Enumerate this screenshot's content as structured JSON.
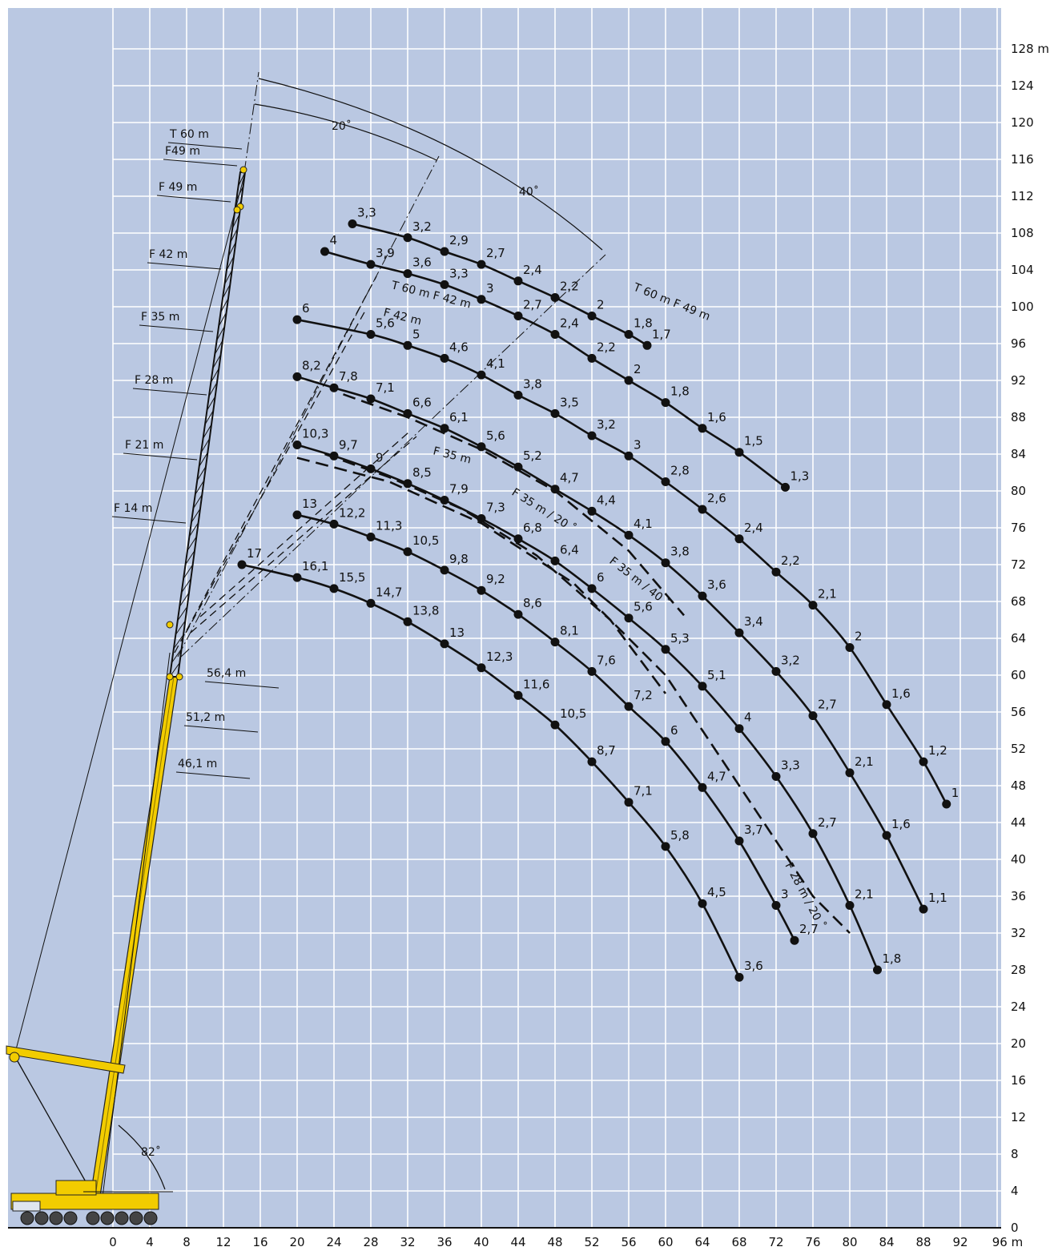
{
  "chart_data": {
    "type": "line",
    "title": "",
    "xlabel": "",
    "ylabel": "",
    "xlim": [
      0,
      96
    ],
    "ylim": [
      0,
      128
    ],
    "x_ticks": [
      "0",
      "4",
      "8",
      "12",
      "16",
      "20",
      "24",
      "28",
      "32",
      "36",
      "40",
      "44",
      "48",
      "52",
      "56",
      "60",
      "64",
      "68",
      "72",
      "76",
      "80",
      "84",
      "88",
      "92",
      "96 m"
    ],
    "y_ticks": [
      "0",
      "4",
      "8",
      "12",
      "16",
      "20",
      "24",
      "28",
      "32",
      "36",
      "40",
      "44",
      "48",
      "52",
      "56",
      "60",
      "64",
      "68",
      "72",
      "76",
      "80",
      "84",
      "88",
      "92",
      "96",
      "100",
      "104",
      "108",
      "112",
      "116",
      "120",
      "124",
      "128 m"
    ],
    "grid": true,
    "background": "#bac8e2",
    "boom_color": "#f2cc00",
    "series": [
      {
        "points": [
          {
            "x": 26,
            "y": 109,
            "label": "3,3"
          },
          {
            "x": 32,
            "y": 107.5,
            "label": "3,2"
          },
          {
            "x": 36,
            "y": 106,
            "label": "2,9"
          },
          {
            "x": 40,
            "y": 104.6,
            "label": "2,7"
          },
          {
            "x": 44,
            "y": 102.8,
            "label": "2,4"
          },
          {
            "x": 48,
            "y": 101,
            "label": "2,2"
          },
          {
            "x": 52,
            "y": 99,
            "label": "2"
          },
          {
            "x": 56,
            "y": 97,
            "label": "1,8"
          },
          {
            "x": 58,
            "y": 95.8,
            "label": "1,7"
          }
        ]
      },
      {
        "points": [
          {
            "x": 23,
            "y": 106,
            "label": "4"
          },
          {
            "x": 28,
            "y": 104.6,
            "label": "3,9"
          },
          {
            "x": 32,
            "y": 103.6,
            "label": "3,6"
          },
          {
            "x": 36,
            "y": 102.4,
            "label": "3,3"
          },
          {
            "x": 40,
            "y": 100.8,
            "label": "3"
          },
          {
            "x": 44,
            "y": 99,
            "label": "2,7"
          },
          {
            "x": 48,
            "y": 97,
            "label": "2,4"
          },
          {
            "x": 52,
            "y": 94.4,
            "label": "2,2"
          },
          {
            "x": 56,
            "y": 92,
            "label": "2"
          },
          {
            "x": 60,
            "y": 89.6,
            "label": "1,8"
          },
          {
            "x": 64,
            "y": 86.8,
            "label": "1,6"
          },
          {
            "x": 68,
            "y": 84.2,
            "label": "1,5"
          },
          {
            "x": 73,
            "y": 80.4,
            "label": "1,3"
          }
        ]
      },
      {
        "points": [
          {
            "x": 20,
            "y": 98.6,
            "label": "6"
          },
          {
            "x": 28,
            "y": 97,
            "label": "5,6"
          },
          {
            "x": 32,
            "y": 95.8,
            "label": "5"
          },
          {
            "x": 36,
            "y": 94.4,
            "label": "4,6"
          },
          {
            "x": 40,
            "y": 92.6,
            "label": "4,1"
          },
          {
            "x": 44,
            "y": 90.4,
            "label": "3,8"
          },
          {
            "x": 48,
            "y": 88.4,
            "label": "3,5"
          },
          {
            "x": 52,
            "y": 86,
            "label": "3,2"
          },
          {
            "x": 56,
            "y": 83.8,
            "label": "3"
          },
          {
            "x": 60,
            "y": 81,
            "label": "2,8"
          },
          {
            "x": 64,
            "y": 78,
            "label": "2,6"
          },
          {
            "x": 68,
            "y": 74.8,
            "label": "2,4"
          },
          {
            "x": 72,
            "y": 71.2,
            "label": "2,2"
          },
          {
            "x": 76,
            "y": 67.6,
            "label": "2,1"
          },
          {
            "x": 80,
            "y": 63,
            "label": "2"
          },
          {
            "x": 84,
            "y": 56.8,
            "label": "1,6"
          },
          {
            "x": 88,
            "y": 50.6,
            "label": "1,2"
          },
          {
            "x": 90.5,
            "y": 46,
            "label": "1"
          }
        ]
      },
      {
        "points": [
          {
            "x": 20,
            "y": 92.4,
            "label": "8,2"
          },
          {
            "x": 24,
            "y": 91.2,
            "label": "7,8"
          },
          {
            "x": 28,
            "y": 90,
            "label": "7,1"
          },
          {
            "x": 32,
            "y": 88.4,
            "label": "6,6"
          },
          {
            "x": 36,
            "y": 86.8,
            "label": "6,1"
          },
          {
            "x": 40,
            "y": 84.8,
            "label": "5,6"
          },
          {
            "x": 44,
            "y": 82.6,
            "label": "5,2"
          },
          {
            "x": 48,
            "y": 80.2,
            "label": "4,7"
          },
          {
            "x": 52,
            "y": 77.8,
            "label": "4,4"
          },
          {
            "x": 56,
            "y": 75.2,
            "label": "4,1"
          },
          {
            "x": 60,
            "y": 72.2,
            "label": "3,8"
          },
          {
            "x": 64,
            "y": 68.6,
            "label": "3,6"
          },
          {
            "x": 68,
            "y": 64.6,
            "label": "3,4"
          },
          {
            "x": 72,
            "y": 60.4,
            "label": "3,2"
          },
          {
            "x": 76,
            "y": 55.6,
            "label": "2,7"
          },
          {
            "x": 80,
            "y": 49.4,
            "label": "2,1"
          },
          {
            "x": 84,
            "y": 42.6,
            "label": "1,6"
          },
          {
            "x": 88,
            "y": 34.6,
            "label": "1,1"
          }
        ]
      },
      {
        "points": [
          {
            "x": 20,
            "y": 85,
            "label": "10,3"
          },
          {
            "x": 24,
            "y": 83.8,
            "label": "9,7"
          },
          {
            "x": 28,
            "y": 82.4,
            "label": "9"
          },
          {
            "x": 32,
            "y": 80.8,
            "label": "8,5"
          },
          {
            "x": 36,
            "y": 79,
            "label": "7,9"
          },
          {
            "x": 40,
            "y": 77,
            "label": "7,3"
          },
          {
            "x": 44,
            "y": 74.8,
            "label": "6,8"
          },
          {
            "x": 48,
            "y": 72.4,
            "label": "6,4"
          },
          {
            "x": 52,
            "y": 69.4,
            "label": "6"
          },
          {
            "x": 56,
            "y": 66.2,
            "label": "5,6"
          },
          {
            "x": 60,
            "y": 62.8,
            "label": "5,3"
          },
          {
            "x": 64,
            "y": 58.8,
            "label": "5,1"
          },
          {
            "x": 68,
            "y": 54.2,
            "label": "4"
          },
          {
            "x": 72,
            "y": 49,
            "label": "3,3"
          },
          {
            "x": 76,
            "y": 42.8,
            "label": "2,7"
          },
          {
            "x": 80,
            "y": 35,
            "label": "2,1"
          },
          {
            "x": 83,
            "y": 28,
            "label": "1,8"
          }
        ]
      },
      {
        "points": [
          {
            "x": 20,
            "y": 77.4,
            "label": "13"
          },
          {
            "x": 24,
            "y": 76.4,
            "label": "12,2"
          },
          {
            "x": 28,
            "y": 75,
            "label": "11,3"
          },
          {
            "x": 32,
            "y": 73.4,
            "label": "10,5"
          },
          {
            "x": 36,
            "y": 71.4,
            "label": "9,8"
          },
          {
            "x": 40,
            "y": 69.2,
            "label": "9,2"
          },
          {
            "x": 44,
            "y": 66.6,
            "label": "8,6"
          },
          {
            "x": 48,
            "y": 63.6,
            "label": "8,1"
          },
          {
            "x": 52,
            "y": 60.4,
            "label": "7,6"
          },
          {
            "x": 56,
            "y": 56.6,
            "label": "7,2"
          },
          {
            "x": 60,
            "y": 52.8,
            "label": "6"
          },
          {
            "x": 64,
            "y": 47.8,
            "label": "4,7"
          },
          {
            "x": 68,
            "y": 42,
            "label": "3,7"
          },
          {
            "x": 72,
            "y": 35,
            "label": "3"
          },
          {
            "x": 74,
            "y": 31.2,
            "label": "2,7"
          }
        ]
      },
      {
        "points": [
          {
            "x": 14,
            "y": 72,
            "label": "17"
          },
          {
            "x": 20,
            "y": 70.6,
            "label": "16,1"
          },
          {
            "x": 24,
            "y": 69.4,
            "label": "15,5"
          },
          {
            "x": 28,
            "y": 67.8,
            "label": "14,7"
          },
          {
            "x": 32,
            "y": 65.8,
            "label": "13,8"
          },
          {
            "x": 36,
            "y": 63.4,
            "label": "13"
          },
          {
            "x": 40,
            "y": 60.8,
            "label": "12,3"
          },
          {
            "x": 44,
            "y": 57.8,
            "label": "11,6"
          },
          {
            "x": 48,
            "y": 54.6,
            "label": "10,5"
          },
          {
            "x": 52,
            "y": 50.6,
            "label": "8,7"
          },
          {
            "x": 56,
            "y": 46.2,
            "label": "7,1"
          },
          {
            "x": 60,
            "y": 41.4,
            "label": "5,8"
          },
          {
            "x": 64,
            "y": 35.2,
            "label": "4,5"
          },
          {
            "x": 68,
            "y": 27.2,
            "label": "3,6"
          }
        ]
      }
    ],
    "offset_curves": [
      {
        "label": "F 35 m / 20°",
        "points": [
          {
            "x": 23,
            "y": 84
          },
          {
            "x": 30,
            "y": 81.5
          },
          {
            "x": 38,
            "y": 78
          },
          {
            "x": 46,
            "y": 73
          },
          {
            "x": 54,
            "y": 66
          },
          {
            "x": 60,
            "y": 58
          }
        ]
      },
      {
        "label": "F 35 m / 40°",
        "points": [
          {
            "x": 25,
            "y": 90.5
          },
          {
            "x": 32,
            "y": 88
          },
          {
            "x": 40,
            "y": 84.5
          },
          {
            "x": 48,
            "y": 80
          },
          {
            "x": 56,
            "y": 73.5
          },
          {
            "x": 62,
            "y": 66.5
          }
        ]
      },
      {
        "label": "F 28 m / 20°",
        "points": [
          {
            "x": 20,
            "y": 83.6
          },
          {
            "x": 30,
            "y": 81
          },
          {
            "x": 40,
            "y": 76.5
          },
          {
            "x": 50,
            "y": 70
          },
          {
            "x": 60,
            "y": 60
          },
          {
            "x": 68,
            "y": 48
          },
          {
            "x": 76,
            "y": 36
          },
          {
            "x": 80,
            "y": 32
          }
        ]
      }
    ],
    "boom_annotations": [
      "T 60  m",
      "F49  m",
      "F 49  m",
      "F 42  m",
      "F 35  m",
      "F 28  m",
      "F 21  m",
      "F 14  m",
      "56,4  m",
      "51,2  m",
      "46,1  m"
    ],
    "angle_annotations": [
      "20˚",
      "40˚",
      "82˚"
    ],
    "curve_annotations": [
      "T 60 m F 49  m",
      "T 60 m F 42  m",
      "F 42  m",
      "F 35  m",
      "F 35  m / 20 ˚",
      "F 35 m  / 40 ˚",
      "F 28 m / 20 ˚"
    ]
  }
}
